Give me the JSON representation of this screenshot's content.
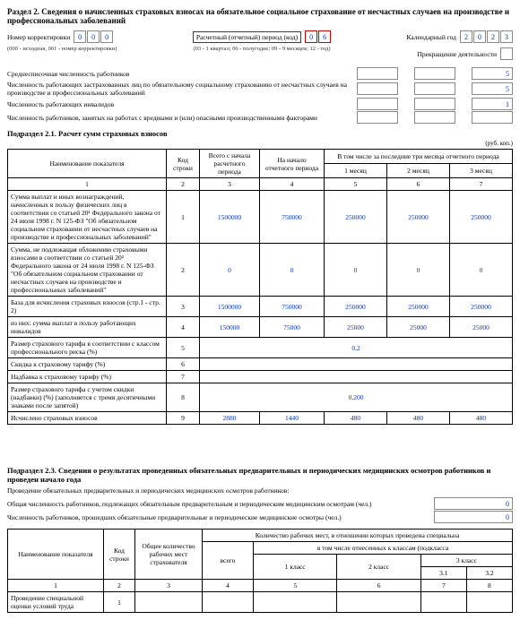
{
  "section2": {
    "title": "Раздел 2. Сведения о начисленных страховых взносах на обязательное социальное страхование от несчастных случаев на производстве и профессиональных заболеваний",
    "corr_label": "Номер корректировки",
    "corr_note": "(000 - исходная, 001 - номер корректировки)",
    "corr_value": [
      "0",
      "0",
      "0"
    ],
    "period_label": "Расчетный (отчетный) период (код)",
    "period_note": "(03 - 1 квартал; 06 - полугодие; 09 - 9 месяцев; 12 - год)",
    "period_value": [
      "0",
      "6"
    ],
    "year_label": "Календарный год",
    "year_value": [
      "2",
      "0",
      "2",
      "3"
    ],
    "cease_label": "Прекращение деятельности",
    "lines": [
      {
        "label": "Среднесписочная численность работников",
        "vals": [
          "",
          "",
          "5"
        ]
      },
      {
        "label": "Численность работающих застрахованных лиц по обязательному социальному страхованию от несчастных случаев на производстве и профессиональных заболеваний",
        "vals": [
          "",
          "",
          "5"
        ]
      },
      {
        "label": "Численность работающих инвалидов",
        "vals": [
          "",
          "",
          "1"
        ]
      },
      {
        "label": "Численность работников, занятых на работах с вредными и (или) опасными производственными факторами",
        "vals": [
          "",
          "",
          ""
        ]
      }
    ]
  },
  "sub21": {
    "title": "Подраздел 2.1. Расчет сумм страховых взносов",
    "unit": "(руб. коп.)",
    "headers": {
      "name": "Наименование показателя",
      "code": "Код строки",
      "total": "Всего\nс начала\nрасчетного периода",
      "start": "На начало отчетного\nпериода",
      "last3": "В том числе за последние три месяца отчетного периода",
      "m1": "1 месяц",
      "m2": "2 месяц",
      "m3": "3 месяц"
    },
    "colnums": [
      "1",
      "2",
      "3",
      "4",
      "5",
      "6",
      "7"
    ],
    "rows": [
      {
        "name": "Сумма выплат и иных вознаграждений, начисленных в пользу физических лиц в соответствии со статьей 20¹ Федерального закона от 24 июля 1998 г. N 125-ФЗ \"Об обязательном социальном страховании от несчастных случаев на производстве и профессиональных заболеваний\"",
        "code": "1",
        "vals": [
          "1500000",
          "750000",
          "250000",
          "250000",
          "250000"
        ]
      },
      {
        "name": "Сумма, не подлежащая обложению страховыми взносами в соответствии со статьей 20² Федерального закона от 24 июля 1998 г. N 125-ФЗ \"Об обязательном социальном страховании от несчастных случаев на производстве и профессиональных заболеваний\"",
        "code": "2",
        "vals": [
          "0",
          "0",
          "0",
          "0",
          "0"
        ]
      },
      {
        "name": "База для исчисления страховых взносов (стр.1 - стр. 2)",
        "code": "3",
        "vals": [
          "1500000",
          "750000",
          "250000",
          "250000",
          "250000"
        ]
      },
      {
        "name": "из них: сумма выплат в пользу работающих инвалидов",
        "code": "4",
        "vals": [
          "150000",
          "75000",
          "25000",
          "25000",
          "25000"
        ]
      },
      {
        "name": "Размер страхового тарифа в соответствии с классом профессионального риска (%)",
        "code": "5",
        "vals": [
          "",
          "",
          "0,2",
          "",
          ""
        ],
        "merged": true
      },
      {
        "name": "Скидка к страховому тарифу (%)",
        "code": "6",
        "vals": [
          "",
          "",
          "",
          "",
          ""
        ],
        "merged": true
      },
      {
        "name": "Надбавка к страховому тарифу (%)",
        "code": "7",
        "vals": [
          "",
          "",
          "",
          "",
          ""
        ],
        "merged": true
      },
      {
        "name": "Размер страхового тарифа с учетом скидки (надбавки) (%) (заполняется с тремя десятичными знаками после запятой)",
        "code": "8",
        "vals": [
          "",
          "",
          "0,200",
          "",
          ""
        ],
        "merged": true
      },
      {
        "name": "Исчислено страховых взносов",
        "code": "9",
        "vals": [
          "2880",
          "1440",
          "480",
          "480",
          "480"
        ]
      }
    ]
  },
  "sub23": {
    "title": "Подраздел 2.3. Сведения о результатах проведенных обязательных предварительных и периодических медицинских осмотров работников и проведен начало года",
    "line1": "Проведение обязательных предварительных и периодических медицинских осмотров работников:",
    "line2": "Общая численность работников, подлежащих обязательным предварительным и периодическим медицинским осмотрам (чел.)",
    "line3": "Численность работников, прошедших обязательные предварительные и периодические медицинские осмотры (чел.)",
    "val2": "0",
    "val3": "0",
    "headers": {
      "name": "Наименование показателя",
      "code": "Код\nстроки",
      "total": "Общее количество\nрабочих мест\nстрахователя",
      "places": "Количество рабочих мест, в отношении которых проведена специальна",
      "sub": "в том числе отнесенных к классам (подкласса",
      "all": "всего",
      "c1": "1 класс",
      "c2": "2 класс",
      "c3": "3 класс",
      "c31": "3.1",
      "c32": "3.2"
    },
    "colnums": [
      "1",
      "2",
      "3",
      "4",
      "5",
      "6",
      "7",
      "8"
    ],
    "rows": [
      {
        "name": "Проведение специальной оценки условий труда",
        "code": "1",
        "vals": [
          "",
          "",
          "",
          "",
          "",
          ""
        ]
      }
    ]
  },
  "colors": {
    "value": "#0033cc",
    "redborder": "#cc0000",
    "border": "#888888"
  }
}
